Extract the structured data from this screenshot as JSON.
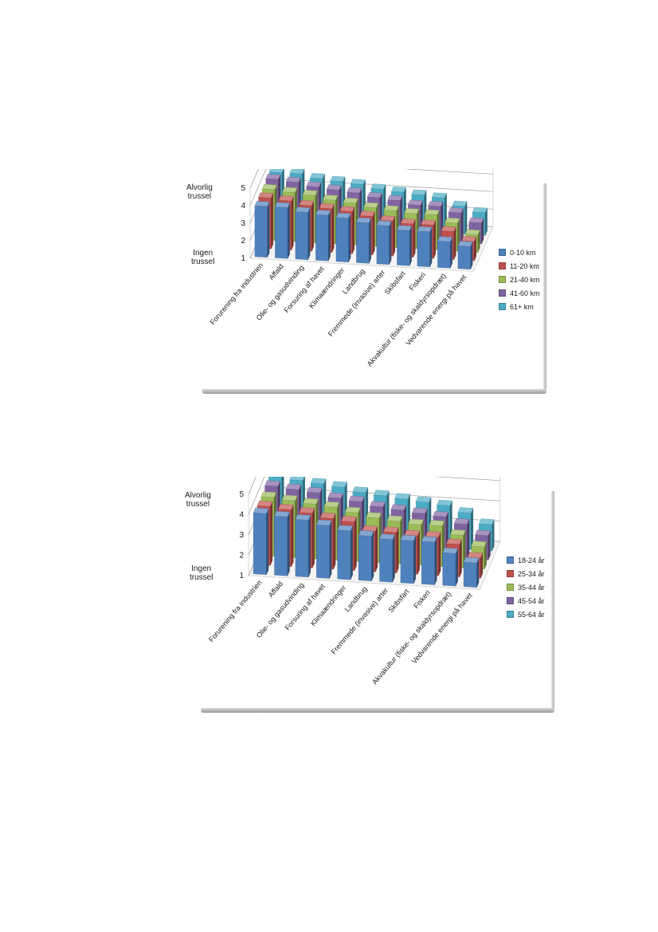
{
  "chart_data": [
    {
      "type": "bar",
      "categories": [
        "Forurening fra industrien",
        "Affald",
        "Olie- og gasudvinding",
        "Forsuring af havet",
        "Klimaændringer",
        "Landbrug",
        "Fremmede (invasive) arter",
        "Skibsfart",
        "Fiskeri",
        "Akvakultur (fiske- og skaldyrsopdræt)",
        "Vedvarende energi på havet"
      ],
      "series": [
        {
          "name": "0-10 km",
          "color": "#4f81bd",
          "values": [
            3.9,
            3.9,
            3.7,
            3.6,
            3.5,
            3.3,
            3.2,
            3.0,
            3.0,
            2.5,
            2.3
          ]
        },
        {
          "name": "11-20 km",
          "color": "#c0504d",
          "values": [
            3.9,
            3.8,
            3.6,
            3.5,
            3.4,
            3.2,
            3.0,
            2.9,
            2.9,
            2.6,
            2.1
          ]
        },
        {
          "name": "21-40 km",
          "color": "#9bbb59",
          "values": [
            3.9,
            3.8,
            3.7,
            3.5,
            3.4,
            3.2,
            3.1,
            3.0,
            3.0,
            2.6,
            2.0
          ]
        },
        {
          "name": "41-60 km",
          "color": "#8064a2",
          "values": [
            4.0,
            3.9,
            3.7,
            3.6,
            3.5,
            3.3,
            3.2,
            3.0,
            3.0,
            2.7,
            2.2
          ]
        },
        {
          "name": "61+ km",
          "color": "#4bacc6",
          "values": [
            3.9,
            3.9,
            3.7,
            3.6,
            3.5,
            3.3,
            3.2,
            3.1,
            3.0,
            2.6,
            2.3
          ]
        }
      ],
      "y_ticks": [
        "1",
        "2",
        "3",
        "4",
        "5"
      ],
      "ylim": [
        1,
        5
      ],
      "y_top_label": "Alvorlig\ntrussel",
      "y_bottom_label": "Ingen\ntrussel",
      "legend_position": "right"
    },
    {
      "type": "bar",
      "categories": [
        "Forurening fra industrien",
        "Affald",
        "Olie- og gasudvinding",
        "Forsuring af havet",
        "Klimaændringer",
        "Landbrug",
        "Fremmede (invasive) arter",
        "Skibsfart",
        "Fiskeri",
        "Akvakultur (fiske- og skaldyrsopdræt)",
        "Vedvarende energi på havet"
      ],
      "series": [
        {
          "name": "18-24 år",
          "color": "#4f81bd",
          "values": [
            4.0,
            3.9,
            3.8,
            3.6,
            3.4,
            3.2,
            3.1,
            3.1,
            3.1,
            2.6,
            2.2
          ]
        },
        {
          "name": "25-34 år",
          "color": "#c0504d",
          "values": [
            3.9,
            3.8,
            3.7,
            3.5,
            3.4,
            3.0,
            3.0,
            2.9,
            2.9,
            2.6,
            2.0
          ]
        },
        {
          "name": "35-44 år",
          "color": "#9bbb59",
          "values": [
            3.9,
            3.8,
            3.7,
            3.6,
            3.4,
            3.2,
            3.1,
            3.0,
            3.0,
            2.6,
            2.1
          ]
        },
        {
          "name": "45-54 år",
          "color": "#8064a2",
          "values": [
            4.0,
            3.9,
            3.8,
            3.6,
            3.5,
            3.3,
            3.2,
            3.1,
            3.0,
            2.7,
            2.2
          ]
        },
        {
          "name": "55-64 år",
          "color": "#4bacc6",
          "values": [
            4.0,
            3.9,
            3.8,
            3.7,
            3.5,
            3.4,
            3.3,
            3.2,
            3.1,
            2.8,
            2.3
          ]
        }
      ],
      "y_ticks": [
        "1",
        "2",
        "3",
        "4",
        "5"
      ],
      "ylim": [
        1,
        5
      ],
      "y_top_label": "Alvorlig\ntrussel",
      "y_bottom_label": "Ingen\ntrussel",
      "legend_position": "right"
    }
  ]
}
